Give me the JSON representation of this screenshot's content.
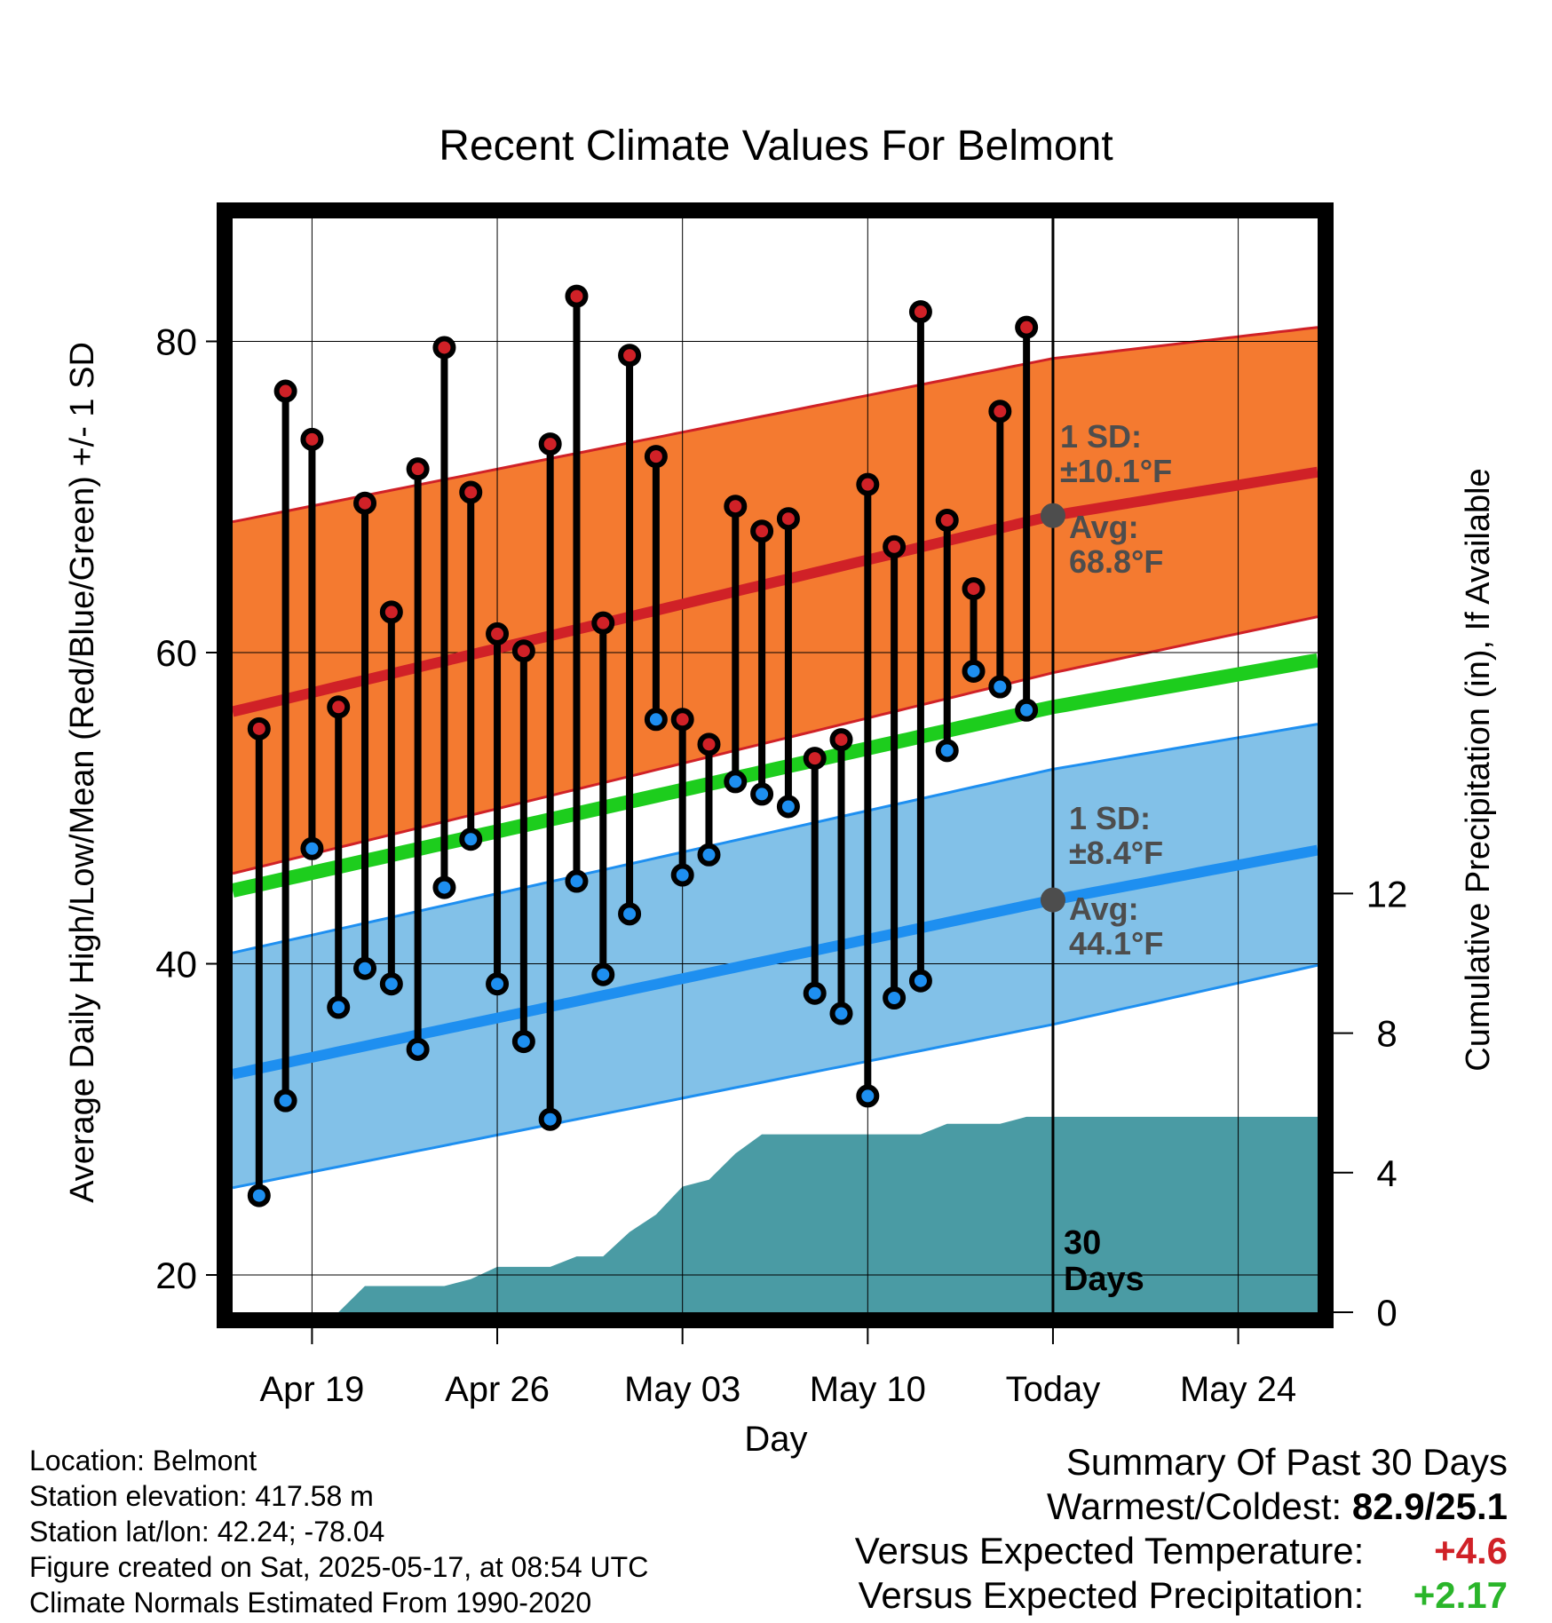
{
  "title": "Recent Climate Values For Belmont",
  "chart_data": {
    "type": "line",
    "title": "Recent Climate Values For Belmont",
    "xlabel": "Day",
    "ylabel_left": "Average Daily High/Low/Mean (Red/Blue/Green) +/- 1 SD",
    "ylabel_right": "Cumulative Precipitation (in), If Available",
    "x_tick_labels": [
      "Apr 19",
      "Apr 26",
      "May 03",
      "May 10",
      "Today",
      "May 24"
    ],
    "x_tick_dates": [
      "2025-04-19",
      "2025-04-26",
      "2025-05-03",
      "2025-05-10",
      "2025-05-17",
      "2025-05-24"
    ],
    "x_range": [
      "2025-04-16",
      "2025-05-27"
    ],
    "y_ticks_left": [
      20,
      40,
      60,
      80
    ],
    "ylim_left": [
      17.6,
      87.9
    ],
    "y_ticks_right": [
      0,
      4,
      8,
      12
    ],
    "grid": true,
    "normals": {
      "high_avg": [
        {
          "x": "2025-04-16",
          "y": 56.2
        },
        {
          "x": "2025-05-17",
          "y": 68.8
        },
        {
          "x": "2025-05-27",
          "y": 71.6
        }
      ],
      "high_sd_upper": [
        {
          "x": "2025-04-16",
          "y": 68.4
        },
        {
          "x": "2025-05-17",
          "y": 78.9
        },
        {
          "x": "2025-05-27",
          "y": 80.9
        }
      ],
      "high_sd_lower": [
        {
          "x": "2025-04-16",
          "y": 45.8
        },
        {
          "x": "2025-05-17",
          "y": 58.7
        },
        {
          "x": "2025-05-27",
          "y": 62.3
        }
      ],
      "mean_avg": [
        {
          "x": "2025-04-16",
          "y": 44.7
        },
        {
          "x": "2025-05-17",
          "y": 56.5
        },
        {
          "x": "2025-05-27",
          "y": 59.5
        }
      ],
      "low_avg": [
        {
          "x": "2025-04-16",
          "y": 32.9
        },
        {
          "x": "2025-05-17",
          "y": 44.1
        },
        {
          "x": "2025-05-27",
          "y": 47.3
        }
      ],
      "low_sd_upper": [
        {
          "x": "2025-04-16",
          "y": 40.7
        },
        {
          "x": "2025-05-17",
          "y": 52.5
        },
        {
          "x": "2025-05-27",
          "y": 55.4
        }
      ],
      "low_sd_lower": [
        {
          "x": "2025-04-16",
          "y": 25.6
        },
        {
          "x": "2025-05-17",
          "y": 36.1
        },
        {
          "x": "2025-05-27",
          "y": 39.9
        }
      ]
    },
    "daily": [
      {
        "date": "2025-04-17",
        "high": 55.1,
        "low": 25.1
      },
      {
        "date": "2025-04-18",
        "high": 76.8,
        "low": 31.2
      },
      {
        "date": "2025-04-19",
        "high": 73.7,
        "low": 47.4
      },
      {
        "date": "2025-04-20",
        "high": 56.5,
        "low": 37.2
      },
      {
        "date": "2025-04-21",
        "high": 69.6,
        "low": 39.7
      },
      {
        "date": "2025-04-22",
        "high": 62.6,
        "low": 38.7
      },
      {
        "date": "2025-04-23",
        "high": 71.8,
        "low": 34.5
      },
      {
        "date": "2025-04-24",
        "high": 79.6,
        "low": 44.9
      },
      {
        "date": "2025-04-25",
        "high": 70.3,
        "low": 48.0
      },
      {
        "date": "2025-04-26",
        "high": 61.2,
        "low": 38.7
      },
      {
        "date": "2025-04-27",
        "high": 60.1,
        "low": 35.0
      },
      {
        "date": "2025-04-28",
        "high": 73.4,
        "low": 30.0
      },
      {
        "date": "2025-04-29",
        "high": 82.9,
        "low": 45.3
      },
      {
        "date": "2025-04-30",
        "high": 61.9,
        "low": 39.3
      },
      {
        "date": "2025-05-01",
        "high": 79.1,
        "low": 43.2
      },
      {
        "date": "2025-05-02",
        "high": 72.6,
        "low": 55.7
      },
      {
        "date": "2025-05-03",
        "high": 55.7,
        "low": 45.7
      },
      {
        "date": "2025-05-04",
        "high": 54.1,
        "low": 47.0
      },
      {
        "date": "2025-05-05",
        "high": 69.4,
        "low": 51.7
      },
      {
        "date": "2025-05-06",
        "high": 67.8,
        "low": 50.9
      },
      {
        "date": "2025-05-07",
        "high": 68.6,
        "low": 50.1
      },
      {
        "date": "2025-05-08",
        "high": 53.2,
        "low": 38.1
      },
      {
        "date": "2025-05-09",
        "high": 54.4,
        "low": 36.8
      },
      {
        "date": "2025-05-10",
        "high": 70.8,
        "low": 31.5
      },
      {
        "date": "2025-05-11",
        "high": 66.8,
        "low": 37.8
      },
      {
        "date": "2025-05-12",
        "high": 81.9,
        "low": 38.9
      },
      {
        "date": "2025-05-13",
        "high": 68.5,
        "low": 53.7
      },
      {
        "date": "2025-05-14",
        "high": 64.1,
        "low": 58.8
      },
      {
        "date": "2025-05-15",
        "high": 75.5,
        "low": 57.8
      },
      {
        "date": "2025-05-16",
        "high": 80.9,
        "low": 56.3
      }
    ],
    "cumulative_precip": [
      {
        "date": "2025-04-17",
        "y": 0.0
      },
      {
        "date": "2025-04-18",
        "y": 0.0
      },
      {
        "date": "2025-04-19",
        "y": 0.0
      },
      {
        "date": "2025-04-20",
        "y": 0.0
      },
      {
        "date": "2025-04-21",
        "y": 0.75
      },
      {
        "date": "2025-04-22",
        "y": 0.75
      },
      {
        "date": "2025-04-23",
        "y": 0.75
      },
      {
        "date": "2025-04-24",
        "y": 0.75
      },
      {
        "date": "2025-04-25",
        "y": 0.95
      },
      {
        "date": "2025-04-26",
        "y": 1.3
      },
      {
        "date": "2025-04-27",
        "y": 1.3
      },
      {
        "date": "2025-04-28",
        "y": 1.3
      },
      {
        "date": "2025-04-29",
        "y": 1.6
      },
      {
        "date": "2025-04-30",
        "y": 1.6
      },
      {
        "date": "2025-05-01",
        "y": 2.3
      },
      {
        "date": "2025-05-02",
        "y": 2.8
      },
      {
        "date": "2025-05-03",
        "y": 3.6
      },
      {
        "date": "2025-05-04",
        "y": 3.8
      },
      {
        "date": "2025-05-05",
        "y": 4.55
      },
      {
        "date": "2025-05-06",
        "y": 5.1
      },
      {
        "date": "2025-05-07",
        "y": 5.1
      },
      {
        "date": "2025-05-08",
        "y": 5.1
      },
      {
        "date": "2025-05-09",
        "y": 5.1
      },
      {
        "date": "2025-05-10",
        "y": 5.1
      },
      {
        "date": "2025-05-11",
        "y": 5.1
      },
      {
        "date": "2025-05-12",
        "y": 5.1
      },
      {
        "date": "2025-05-13",
        "y": 5.4
      },
      {
        "date": "2025-05-14",
        "y": 5.4
      },
      {
        "date": "2025-05-15",
        "y": 5.4
      },
      {
        "date": "2025-05-16",
        "y": 5.6
      },
      {
        "date": "2025-05-17",
        "y": 5.6
      },
      {
        "date": "2025-05-27",
        "y": 5.6
      }
    ],
    "annotations": {
      "today_date": "2025-05-17",
      "high_sd_label": [
        "1 SD:",
        "±10.1°F"
      ],
      "high_avg_label": [
        "Avg:",
        "68.8°F"
      ],
      "low_sd_label": [
        "1 SD:",
        "±8.4°F"
      ],
      "low_avg_label": [
        "Avg:",
        "44.1°F"
      ],
      "period_label": [
        "30",
        "Days"
      ]
    },
    "colors": {
      "high_band": "#f47a30",
      "high_line": "#d02127",
      "mean_line": "#1dcd1d",
      "low_band": "#82c1e8",
      "low_line": "#1e8ff0",
      "precip": "#4a9ba4",
      "high_dot": "#d02127",
      "low_dot": "#1e8ff0",
      "annotation": "#4d4d4d"
    }
  },
  "footer": {
    "location": "Location: Belmont",
    "elevation": "Station elevation: 417.58 m",
    "latlon": "Station lat/lon: 42.24; -78.04",
    "created": "Figure created on Sat, 2025-05-17, at 08:54 UTC",
    "normals": "Climate Normals Estimated From 1990-2020"
  },
  "summary": {
    "heading": "Summary Of Past 30 Days",
    "warmest_label": "Warmest/Coldest:",
    "warmest_value": "82.9/25.1",
    "temp_label": "Versus Expected Temperature:",
    "temp_value": "+4.6",
    "precip_label": "Versus Expected Precipitation:",
    "precip_value": "+2.17"
  }
}
